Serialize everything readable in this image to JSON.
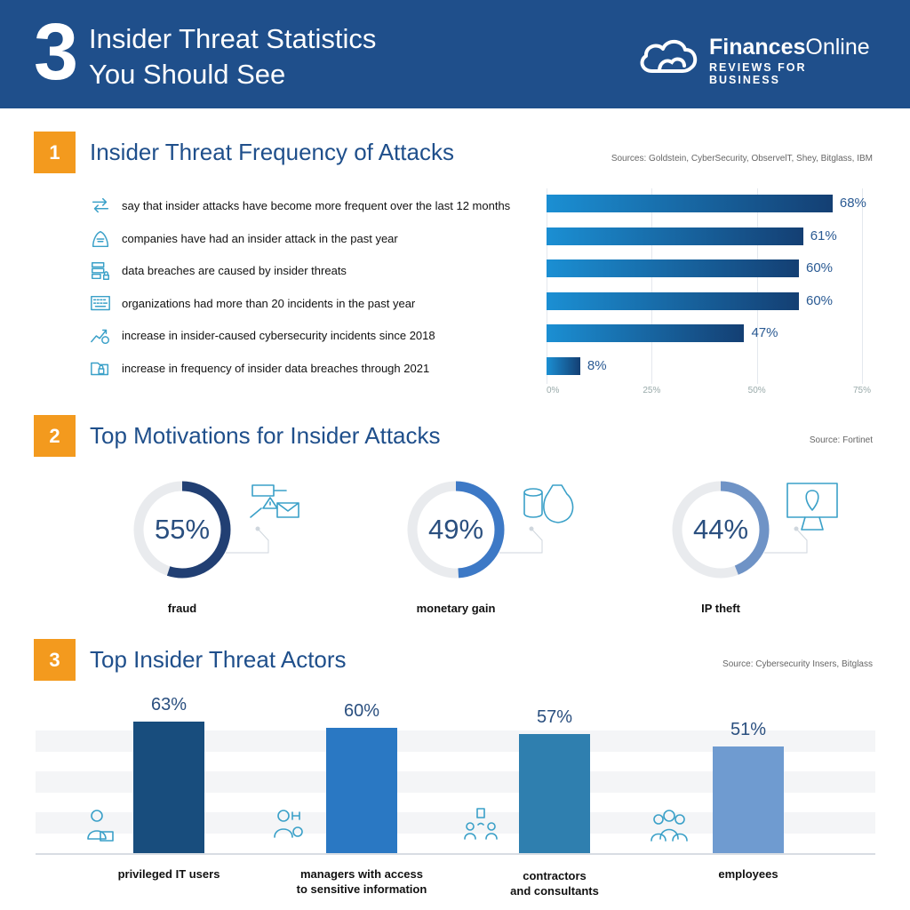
{
  "header": {
    "number": "3",
    "title_line1": "Insider Threat Statistics",
    "title_line2": "You Should See",
    "brand_bold": "Finances",
    "brand_regular": "Online",
    "brand_tagline": "REVIEWS FOR BUSINESS"
  },
  "colors": {
    "header_bg": "#1f4f8b",
    "badge": "#f39a1e",
    "title_blue": "#1f4f8b",
    "bar_gradient_start": "#1b8fd3",
    "bar_gradient_end": "#143f73",
    "donut_colors": [
      "#213f73",
      "#3d79c6",
      "#6f93c6"
    ],
    "vbar_colors": [
      "#184d7d",
      "#2a78c3",
      "#2f7faf",
      "#6f9bd0"
    ]
  },
  "sections": [
    {
      "number": "1",
      "title": "Insider Threat Frequency of Attacks",
      "source": "Sources: Goldstein, CyberSecurity, ObservelT, Shey, Bitglass, IBM"
    },
    {
      "number": "2",
      "title": "Top Motivations for Insider Attacks",
      "source": "Source:  Fortinet"
    },
    {
      "number": "3",
      "title": "Top Insider Threat Actors",
      "source": "Source: Cybersecurity Insers, Bitglass"
    }
  ],
  "chart_data": [
    {
      "type": "bar",
      "orientation": "horizontal",
      "categories": [
        "say that insider attacks have become more frequent over the last 12 months",
        "companies have had an insider attack in the past year",
        "data breaches are caused by insider threats",
        "organizations had more than 20 incidents in the past year",
        "increase in insider-caused cybersecurity incidents since 2018",
        "increase in frequency of insider data breaches through 2021"
      ],
      "values": [
        68,
        61,
        60,
        60,
        47,
        8
      ],
      "value_labels": [
        "68%",
        "61%",
        "60%",
        "60%",
        "47%",
        "8%"
      ],
      "icons": [
        "refresh-arrows-icon",
        "hacker-icon",
        "server-lock-icon",
        "keyboard-icon",
        "growth-chart-icon",
        "folder-lock-icon"
      ],
      "xlim": [
        0,
        75
      ],
      "xticks": [
        "0%",
        "25%",
        "50%",
        "75%"
      ],
      "grid": true
    },
    {
      "type": "pie",
      "style": "donut",
      "categories": [
        "fraud",
        "monetary gain",
        "IP theft"
      ],
      "values": [
        55,
        49,
        44
      ],
      "value_labels": [
        "55%",
        "49%",
        "44%"
      ],
      "icons": [
        "fraud-icon",
        "money-bag-icon",
        "ip-monitor-icon"
      ]
    },
    {
      "type": "bar",
      "orientation": "vertical",
      "categories": [
        "privileged IT users",
        "managers with access to sensitive information",
        "contractors and consultants",
        "employees"
      ],
      "label_lines": [
        [
          "privileged IT users"
        ],
        [
          "managers with access",
          "to sensitive information"
        ],
        [
          "contractors",
          "and consultants"
        ],
        [
          "employees"
        ]
      ],
      "values": [
        63,
        60,
        57,
        51
      ],
      "value_labels": [
        "63%",
        "60%",
        "57%",
        "51%"
      ],
      "icons": [
        "it-user-icon",
        "manager-icon",
        "contractors-icon",
        "employees-icon"
      ]
    }
  ]
}
